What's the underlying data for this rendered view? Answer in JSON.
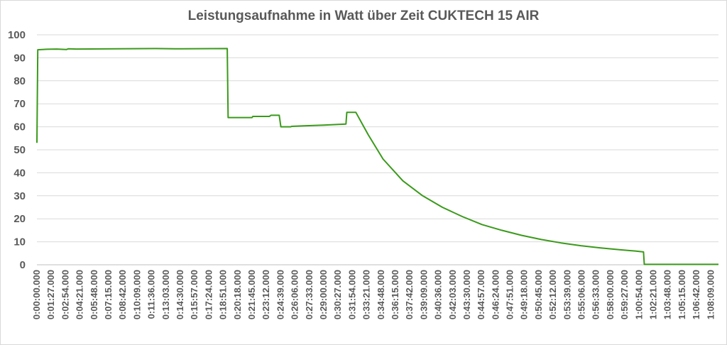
{
  "chart_data": {
    "type": "line",
    "title": "Leistungsaufnahme in Watt über Zeit CUKTECH 15 AIR",
    "xlabel": "",
    "ylabel": "",
    "ylim": [
      0,
      100
    ],
    "yticks": [
      "0",
      "10",
      "20",
      "30",
      "40",
      "50",
      "60",
      "70",
      "80",
      "90",
      "100"
    ],
    "grid": true,
    "legend": "none",
    "x_unit": "time h:mm:ss.sss",
    "xticks": [
      "0:00:00.000",
      "0:01:27.000",
      "0:02:54.000",
      "0:04:21.000",
      "0:05:48.000",
      "0:07:15.000",
      "0:08:42.000",
      "0:10:09.000",
      "0:11:36.000",
      "0:13:03.000",
      "0:14:30.000",
      "0:15:57.000",
      "0:17:24.000",
      "0:18:51.000",
      "0:20:18.000",
      "0:21:45.000",
      "0:23:12.000",
      "0:24:39.000",
      "0:26:06.000",
      "0:27:33.000",
      "0:29:00.000",
      "0:30:27.000",
      "0:31:54.000",
      "0:33:21.000",
      "0:34:48.000",
      "0:36:15.000",
      "0:37:42.000",
      "0:39:09.000",
      "0:40:36.000",
      "0:42:03.000",
      "0:43:30.000",
      "0:44:57.000",
      "0:46:24.000",
      "0:47:51.000",
      "0:49:18.000",
      "0:50:45.000",
      "0:52:12.000",
      "0:53:39.000",
      "0:55:06.000",
      "0:56:33.000",
      "0:58:00.000",
      "0:59:27.000",
      "1:00:54.000",
      "1:02:21.000",
      "1:03:48.000",
      "1:05:15.000",
      "1:06:42.000",
      "1:08:09.000"
    ],
    "color": "#3a9a1a",
    "series": [
      {
        "x": [
          "0:00:00",
          "0:00:05",
          "0:01:00",
          "0:02:00",
          "0:03:00",
          "0:03:10",
          "0:04:00",
          "0:08:00",
          "0:12:00",
          "0:14:00",
          "0:19:15",
          "0:19:20",
          "0:21:45",
          "0:21:50",
          "0:23:30",
          "0:23:40",
          "0:24:30",
          "0:24:40",
          "0:25:40",
          "0:25:45",
          "0:27:00",
          "0:29:00",
          "0:31:15",
          "0:31:20",
          "0:32:15",
          "0:33:30",
          "0:35:00",
          "0:37:00",
          "0:39:00",
          "0:41:00",
          "0:43:00",
          "0:45:00",
          "0:47:00",
          "0:49:00",
          "0:51:00",
          "0:53:00",
          "0:55:00",
          "0:57:00",
          "0:59:00",
          "1:00:30",
          "1:01:20",
          "1:01:25",
          "1:02:30",
          "1:04:00",
          "1:06:00",
          "1:08:09",
          "1:08:55"
        ],
        "values": [
          53.0,
          93.5,
          93.7,
          93.8,
          93.6,
          93.9,
          93.8,
          93.9,
          94.0,
          93.9,
          94.0,
          64.0,
          64.0,
          64.5,
          64.5,
          65.0,
          65.0,
          60.0,
          60.0,
          60.2,
          60.4,
          60.7,
          61.2,
          66.3,
          66.3,
          56.5,
          46.0,
          36.5,
          30.0,
          25.0,
          21.0,
          17.5,
          15.0,
          12.8,
          11.0,
          9.5,
          8.3,
          7.3,
          6.5,
          6.0,
          5.6,
          0.2,
          0.2,
          0.2,
          0.2,
          0.2,
          0.2
        ]
      }
    ]
  }
}
